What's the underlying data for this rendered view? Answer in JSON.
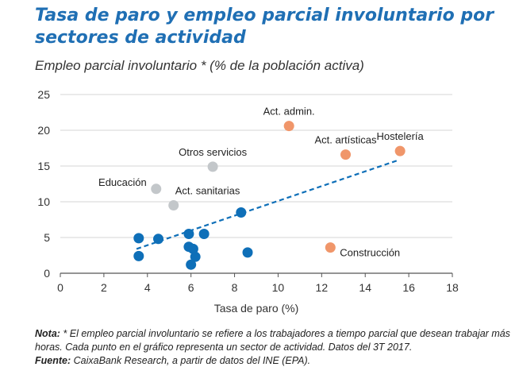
{
  "header": {
    "title": "Tasa de paro y empleo parcial involuntario por sectores de actividad",
    "subtitle": "Empleo parcial involuntario * (% de la población activa)"
  },
  "notes": {
    "nota_label": "Nota:",
    "nota_text": " * El empleo parcial involuntario se refiere a los trabajadores a tiempo parcial que desean trabajar más horas. Cada punto en el gráfico representa un sector de actividad. Datos del 3T 2017.",
    "fuente_label": "Fuente:",
    "fuente_text": " CaixaBank Research, a partir de datos del INE (EPA)."
  },
  "colors": {
    "blue": "#0e6fb8",
    "orange": "#f0966a",
    "grey": "#c3c7ca",
    "title": "#1f6fb4",
    "grid": "#d4d4d4"
  },
  "chart_data": {
    "type": "scatter",
    "xlabel": "Tasa de paro (%)",
    "ylabel": "",
    "xlim": [
      0,
      18
    ],
    "ylim": [
      0,
      25
    ],
    "x_ticks": [
      0,
      2,
      4,
      6,
      8,
      10,
      12,
      14,
      16,
      18
    ],
    "y_ticks": [
      0,
      5,
      10,
      15,
      20,
      25
    ],
    "grid": "horizontal",
    "trendline": {
      "style": "dashed",
      "color": "blue",
      "x": [
        3.5,
        15.5
      ],
      "y": [
        3.4,
        15.8
      ]
    },
    "points": [
      {
        "x": 10.5,
        "y": 20.6,
        "color": "orange",
        "label": "Act. admin.",
        "label_pos": "top"
      },
      {
        "x": 13.1,
        "y": 16.6,
        "color": "orange",
        "label": "Act. artísticas",
        "label_pos": "top"
      },
      {
        "x": 15.6,
        "y": 17.1,
        "color": "orange",
        "label": "Hostelería",
        "label_pos": "top"
      },
      {
        "x": 12.4,
        "y": 3.6,
        "color": "orange",
        "label": "Construcción",
        "label_pos": "right"
      },
      {
        "x": 7.0,
        "y": 14.9,
        "color": "grey",
        "label": "Otros servicios",
        "label_pos": "top"
      },
      {
        "x": 4.4,
        "y": 11.8,
        "color": "grey",
        "label": "Educación",
        "label_pos": "left"
      },
      {
        "x": 5.2,
        "y": 9.5,
        "color": "grey",
        "label": "Act. sanitarias",
        "label_pos": "topright"
      },
      {
        "x": 8.3,
        "y": 8.5,
        "color": "blue",
        "label": "",
        "label_pos": ""
      },
      {
        "x": 3.6,
        "y": 4.9,
        "color": "blue",
        "label": "",
        "label_pos": ""
      },
      {
        "x": 4.5,
        "y": 4.8,
        "color": "blue",
        "label": "",
        "label_pos": ""
      },
      {
        "x": 3.6,
        "y": 2.4,
        "color": "blue",
        "label": "",
        "label_pos": ""
      },
      {
        "x": 5.9,
        "y": 5.5,
        "color": "blue",
        "label": "",
        "label_pos": ""
      },
      {
        "x": 6.6,
        "y": 5.5,
        "color": "blue",
        "label": "",
        "label_pos": ""
      },
      {
        "x": 5.9,
        "y": 3.7,
        "color": "blue",
        "label": "",
        "label_pos": ""
      },
      {
        "x": 6.1,
        "y": 3.4,
        "color": "blue",
        "label": "",
        "label_pos": ""
      },
      {
        "x": 6.2,
        "y": 2.3,
        "color": "blue",
        "label": "",
        "label_pos": ""
      },
      {
        "x": 6.0,
        "y": 1.2,
        "color": "blue",
        "label": "",
        "label_pos": ""
      },
      {
        "x": 8.6,
        "y": 2.9,
        "color": "blue",
        "label": "",
        "label_pos": ""
      }
    ]
  }
}
